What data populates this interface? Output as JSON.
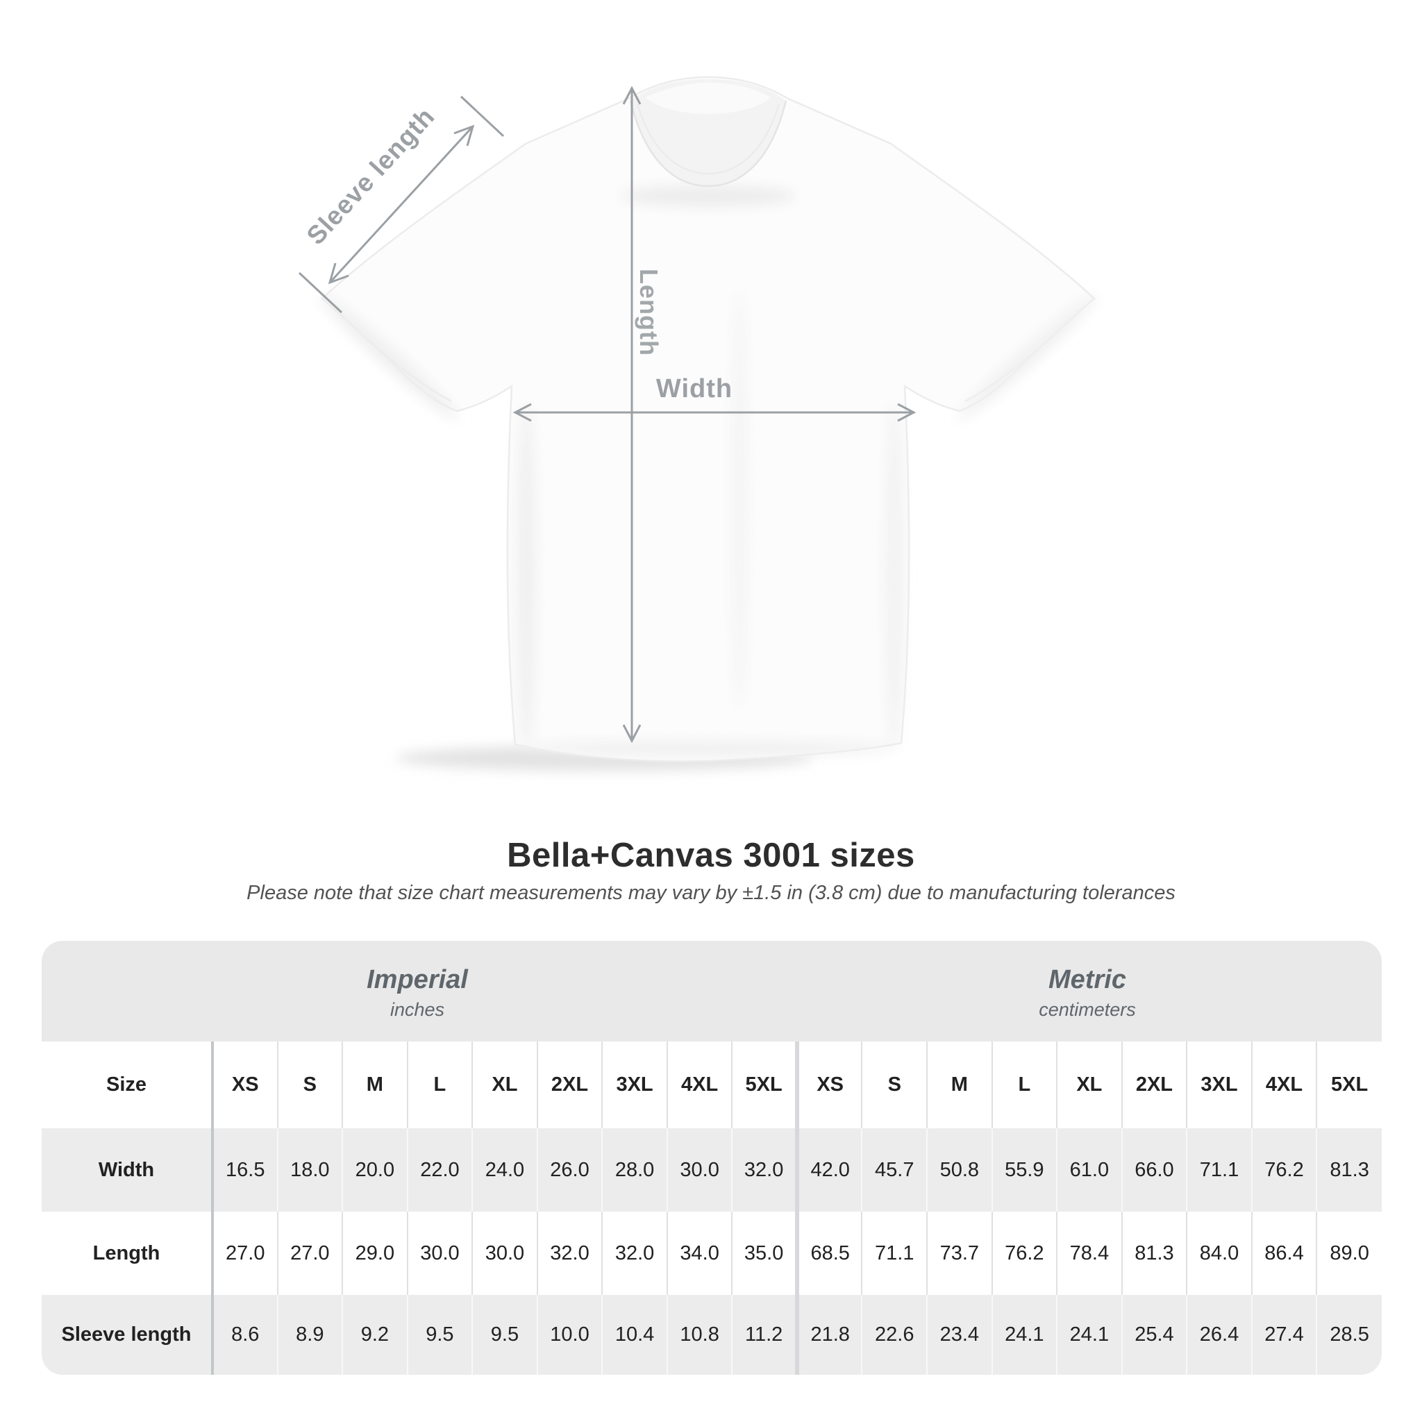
{
  "header": {
    "title": "Bella+Canvas 3001 sizes",
    "note": "Please note that size chart measurements may vary by ±1.5 in (3.8 cm) due to manufacturing tolerances"
  },
  "annotations": {
    "sleeve_label": "Sleeve length",
    "length_label": "Length",
    "width_label": "Width"
  },
  "colors": {
    "annotation_gray": "#9ba0a4",
    "heading_dark": "#2d2d2d",
    "label_gray": "#6d7478",
    "value_dark": "#212121",
    "band_gray": "#e9e9e9",
    "zebra_gray": "#ececec"
  },
  "table": {
    "size_label": "Size",
    "sizes": [
      "XS",
      "S",
      "M",
      "L",
      "XL",
      "2XL",
      "3XL",
      "4XL",
      "5XL"
    ],
    "unit_groups": [
      {
        "name": "Imperial",
        "unit": "inches"
      },
      {
        "name": "Metric",
        "unit": "centimeters"
      }
    ],
    "rows": [
      {
        "label": "Width",
        "imperial": [
          "16.5",
          "18.0",
          "20.0",
          "22.0",
          "24.0",
          "26.0",
          "28.0",
          "30.0",
          "32.0"
        ],
        "metric": [
          "42.0",
          "45.7",
          "50.8",
          "55.9",
          "61.0",
          "66.0",
          "71.1",
          "76.2",
          "81.3"
        ]
      },
      {
        "label": "Length",
        "imperial": [
          "27.0",
          "27.0",
          "29.0",
          "30.0",
          "30.0",
          "32.0",
          "32.0",
          "34.0",
          "35.0"
        ],
        "metric": [
          "68.5",
          "71.1",
          "73.7",
          "76.2",
          "78.4",
          "81.3",
          "84.0",
          "86.4",
          "89.0"
        ]
      },
      {
        "label": "Sleeve length",
        "imperial": [
          "8.6",
          "8.9",
          "9.2",
          "9.5",
          "9.5",
          "10.0",
          "10.4",
          "10.8",
          "11.2"
        ],
        "metric": [
          "21.8",
          "22.6",
          "23.4",
          "24.1",
          "24.1",
          "25.4",
          "26.4",
          "27.4",
          "28.5"
        ]
      }
    ]
  },
  "chart_data": {
    "type": "table",
    "title": "Bella+Canvas 3001 sizes",
    "note": "Please note that size chart measurements may vary by ±1.5 in (3.8 cm) due to manufacturing tolerances",
    "columns": [
      "XS",
      "S",
      "M",
      "L",
      "XL",
      "2XL",
      "3XL",
      "4XL",
      "5XL"
    ],
    "units": [
      "inches",
      "centimeters"
    ],
    "series": [
      {
        "name": "Width (in)",
        "values": [
          16.5,
          18.0,
          20.0,
          22.0,
          24.0,
          26.0,
          28.0,
          30.0,
          32.0
        ]
      },
      {
        "name": "Length (in)",
        "values": [
          27.0,
          27.0,
          29.0,
          30.0,
          30.0,
          32.0,
          32.0,
          34.0,
          35.0
        ]
      },
      {
        "name": "Sleeve length (in)",
        "values": [
          8.6,
          8.9,
          9.2,
          9.5,
          9.5,
          10.0,
          10.4,
          10.8,
          11.2
        ]
      },
      {
        "name": "Width (cm)",
        "values": [
          42.0,
          45.7,
          50.8,
          55.9,
          61.0,
          66.0,
          71.1,
          76.2,
          81.3
        ]
      },
      {
        "name": "Length (cm)",
        "values": [
          68.5,
          71.1,
          73.7,
          76.2,
          78.4,
          81.3,
          84.0,
          86.4,
          89.0
        ]
      },
      {
        "name": "Sleeve length (cm)",
        "values": [
          21.8,
          22.6,
          23.4,
          24.1,
          24.1,
          25.4,
          26.4,
          27.4,
          28.5
        ]
      }
    ]
  }
}
